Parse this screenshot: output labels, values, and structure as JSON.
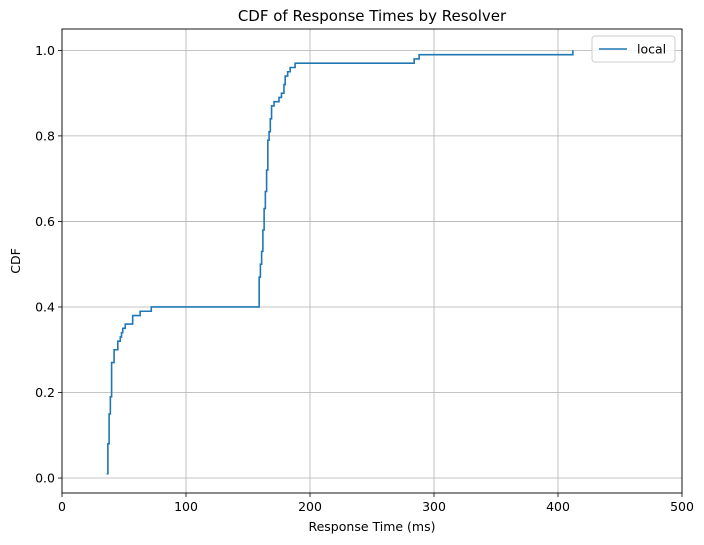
{
  "chart_data": {
    "type": "line",
    "step": true,
    "title": "CDF of Response Times by Resolver",
    "xlabel": "Response Time (ms)",
    "ylabel": "CDF",
    "xlim": [
      0,
      500
    ],
    "ylim": [
      -0.035,
      1.05
    ],
    "xticks": [
      0,
      100,
      200,
      300,
      400,
      500
    ],
    "xtick_labels": [
      "0",
      "100",
      "200",
      "300",
      "400",
      "500"
    ],
    "yticks": [
      0.0,
      0.2,
      0.4,
      0.6,
      0.8,
      1.0
    ],
    "ytick_labels": [
      "0.0",
      "0.2",
      "0.4",
      "0.6",
      "0.8",
      "1.0"
    ],
    "grid": true,
    "legend_position": "top-right",
    "series": [
      {
        "name": "local",
        "color": "#1f77b4",
        "points": [
          [
            36,
            0.01
          ],
          [
            37,
            0.02
          ],
          [
            37,
            0.08
          ],
          [
            38,
            0.15
          ],
          [
            39,
            0.19
          ],
          [
            40,
            0.22
          ],
          [
            40,
            0.27
          ],
          [
            42,
            0.3
          ],
          [
            45,
            0.32
          ],
          [
            47,
            0.33
          ],
          [
            48,
            0.34
          ],
          [
            49,
            0.35
          ],
          [
            51,
            0.36
          ],
          [
            57,
            0.38
          ],
          [
            63,
            0.39
          ],
          [
            72,
            0.4
          ],
          [
            158,
            0.4
          ],
          [
            159,
            0.41
          ],
          [
            159,
            0.47
          ],
          [
            160,
            0.5
          ],
          [
            161,
            0.53
          ],
          [
            162,
            0.58
          ],
          [
            163,
            0.63
          ],
          [
            164,
            0.67
          ],
          [
            165,
            0.72
          ],
          [
            166,
            0.79
          ],
          [
            167,
            0.81
          ],
          [
            168,
            0.84
          ],
          [
            169,
            0.87
          ],
          [
            171,
            0.88
          ],
          [
            175,
            0.89
          ],
          [
            177,
            0.9
          ],
          [
            179,
            0.92
          ],
          [
            180,
            0.94
          ],
          [
            182,
            0.95
          ],
          [
            184,
            0.96
          ],
          [
            188,
            0.97
          ],
          [
            284,
            0.98
          ],
          [
            288,
            0.99
          ],
          [
            412,
            1.0
          ]
        ]
      }
    ]
  }
}
